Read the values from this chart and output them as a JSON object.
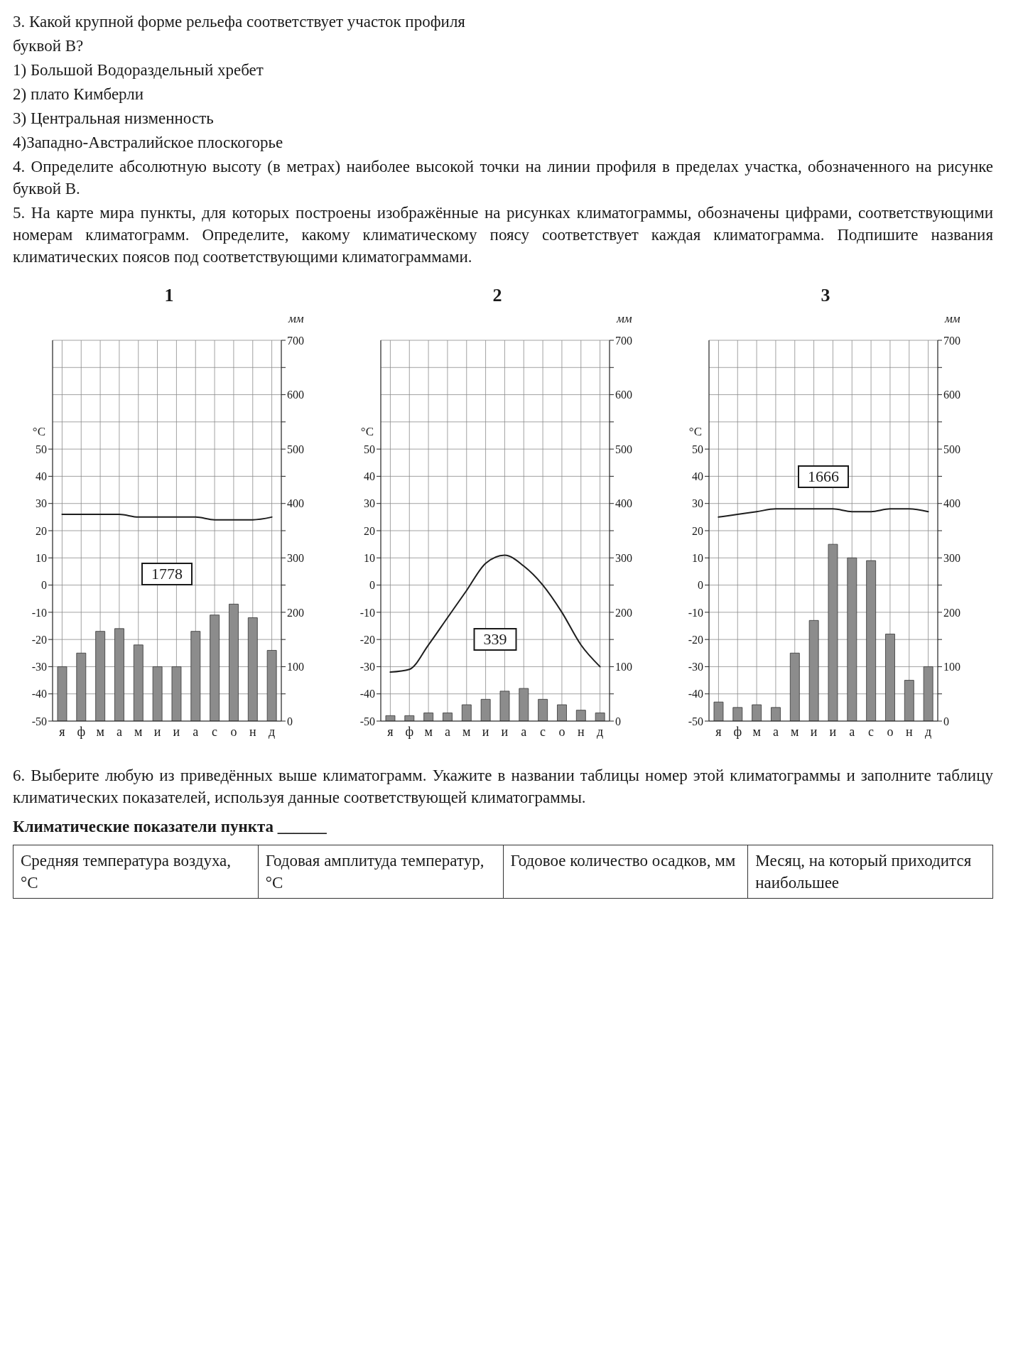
{
  "chart_data": [
    {
      "type": "other",
      "annotations": [
        "3. Какой крупной форме рельефа соответствует участок профиля",
        "буквой В?",
        "1) Большой Водораздельный хребет",
        "2) плато Кимберли",
        "3) Центральная низменность",
        "4)Западно-Австралийское плоскогорье",
        "4. Определите абсолютную высоту (в метрах) наиболее высокой точки на линии профиля в пределах участка, обозначенного на рисунке буквой В.",
        "5. На карте мира пункты, для которых построены изображённые на рисунках климатограммы, обозначены цифрами, соответствующими номерам климатограмм. Определите, какому климатическому поясу соответствует каждая климатограмма. Подпишите названия климатических поясов под соответствующими климатограммами."
      ]
    },
    {
      "type": "bar",
      "title": "1",
      "categories": [
        "я",
        "ф",
        "м",
        "а",
        "м",
        "и",
        "и",
        "а",
        "с",
        "о",
        "н",
        "д"
      ],
      "series": [
        {
          "type": "bar",
          "axis": "y2",
          "color": "#8c8c8c",
          "values": [
            100,
            125,
            165,
            170,
            140,
            100,
            100,
            165,
            195,
            215,
            190,
            130
          ]
        },
        {
          "type": "line",
          "color": "#1e1e1e",
          "values": [
            26,
            26,
            26,
            26,
            25,
            25,
            25,
            25,
            24,
            24,
            24,
            25
          ]
        }
      ],
      "ylabel": "°C",
      "y2label": "мм",
      "ylim": [
        -50,
        90
      ],
      "yticks": [
        -50,
        -40,
        -30,
        -20,
        -10,
        0,
        10,
        20,
        30,
        40,
        50
      ],
      "y2lim": [
        0,
        700
      ],
      "y2ticks": [
        0,
        {
          "value": 50,
          "label": null
        },
        100,
        {
          "value": 150,
          "label": null
        },
        200,
        {
          "value": 250,
          "label": null
        },
        300,
        {
          "value": 350,
          "label": null
        },
        400,
        {
          "value": 450,
          "label": null
        },
        500,
        {
          "value": 550,
          "label": null
        },
        600,
        {
          "value": 650,
          "label": null
        },
        700
      ],
      "grid": true,
      "annotations": [
        "1778"
      ]
    },
    {
      "type": "bar",
      "title": "2",
      "categories": [
        "я",
        "ф",
        "м",
        "а",
        "м",
        "и",
        "и",
        "а",
        "с",
        "о",
        "н",
        "д"
      ],
      "series": [
        {
          "type": "bar",
          "axis": "y2",
          "color": "#8c8c8c",
          "values": [
            10,
            10,
            15,
            15,
            30,
            40,
            55,
            60,
            40,
            30,
            20,
            15
          ]
        },
        {
          "type": "line",
          "color": "#1e1e1e",
          "values": [
            -32,
            -31,
            -22,
            -12,
            -2,
            8,
            11,
            7,
            0,
            -10,
            -22,
            -30
          ]
        }
      ],
      "ylabel": "°C",
      "y2label": "мм",
      "ylim": [
        -50,
        90
      ],
      "yticks": [
        -50,
        -40,
        -30,
        -20,
        -10,
        0,
        10,
        20,
        30,
        40,
        50
      ],
      "y2lim": [
        0,
        700
      ],
      "y2ticks": [
        0,
        {
          "value": 50,
          "label": null
        },
        100,
        {
          "value": 150,
          "label": null
        },
        200,
        {
          "value": 250,
          "label": null
        },
        300,
        {
          "value": 350,
          "label": null
        },
        400,
        {
          "value": 450,
          "label": null
        },
        500,
        {
          "value": 550,
          "label": null
        },
        600,
        {
          "value": 650,
          "label": null
        },
        700
      ],
      "grid": true,
      "annotations": [
        "339"
      ]
    },
    {
      "type": "bar",
      "title": "3",
      "categories": [
        "я",
        "ф",
        "м",
        "а",
        "м",
        "и",
        "и",
        "а",
        "с",
        "о",
        "н",
        "д"
      ],
      "series": [
        {
          "type": "bar",
          "axis": "y2",
          "color": "#8c8c8c",
          "values": [
            35,
            25,
            30,
            25,
            125,
            185,
            325,
            300,
            295,
            160,
            75,
            100
          ]
        },
        {
          "type": "line",
          "color": "#1e1e1e",
          "values": [
            25,
            26,
            27,
            28,
            28,
            28,
            28,
            27,
            27,
            28,
            28,
            27
          ]
        }
      ],
      "ylabel": "°C",
      "y2label": "мм",
      "ylim": [
        -50,
        90
      ],
      "yticks": [
        -50,
        -40,
        -30,
        -20,
        -10,
        0,
        10,
        20,
        30,
        40,
        50
      ],
      "y2lim": [
        0,
        700
      ],
      "y2ticks": [
        0,
        {
          "value": 50,
          "label": null
        },
        100,
        {
          "value": 150,
          "label": null
        },
        200,
        {
          "value": 250,
          "label": null
        },
        300,
        {
          "value": 350,
          "label": null
        },
        400,
        {
          "value": 450,
          "label": null
        },
        500,
        {
          "value": 550,
          "label": null
        },
        600,
        {
          "value": 650,
          "label": null
        },
        700
      ],
      "grid": true,
      "annotations": [
        "1666"
      ]
    },
    {
      "type": "other",
      "annotations": [
        "6. Выберите любую из приведённых выше климатограмм. Укажите в названии таблицы номер этой климатограммы и заполните таблицу климатических показателей, используя данные соответствующей климатограммы."
      ],
      "title": "Климатические показатели пункта ______",
      "categories": [
        "Средняя температура воздуха, °C",
        "Годовая амплитуда температур, °C",
        "Годовое количество осадков, мм",
        "Месяц, на который приходится наибольшее"
      ]
    }
  ]
}
